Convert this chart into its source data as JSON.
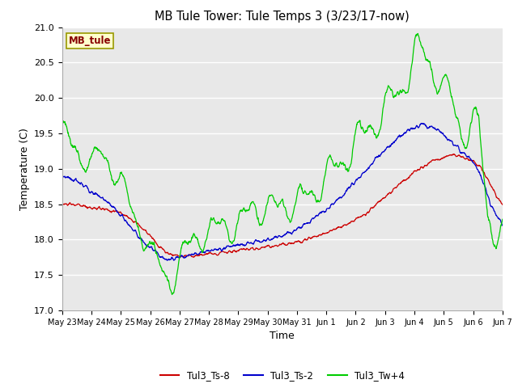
{
  "title": "MB Tule Tower: Tule Temps 3 (3/23/17-now)",
  "xlabel": "Time",
  "ylabel": "Temperature (C)",
  "ylim": [
    17.0,
    21.0
  ],
  "yticks": [
    17.0,
    17.5,
    18.0,
    18.5,
    19.0,
    19.5,
    20.0,
    20.5,
    21.0
  ],
  "fig_bg_color": "#ffffff",
  "plot_bg_color": "#e8e8e8",
  "legend_label": "MB_tule",
  "legend_box_color": "#ffffcc",
  "legend_box_edge": "#999900",
  "series": [
    {
      "label": "Tul3_Ts-8",
      "color": "#cc0000"
    },
    {
      "label": "Tul3_Ts-2",
      "color": "#0000cc"
    },
    {
      "label": "Tul3_Tw+4",
      "color": "#00cc00"
    }
  ],
  "tick_labels": [
    "May 23",
    "May 24",
    "May 25",
    "May 26",
    "May 27",
    "May 28",
    "May 29",
    "May 30",
    "May 31",
    "Jun 1",
    "Jun 2",
    "Jun 3",
    "Jun 4",
    "Jun 5",
    "Jun 6",
    "Jun 7"
  ],
  "tick_positions": [
    0,
    1,
    2,
    3,
    4,
    5,
    6,
    7,
    8,
    9,
    10,
    11,
    12,
    13,
    14,
    15
  ]
}
